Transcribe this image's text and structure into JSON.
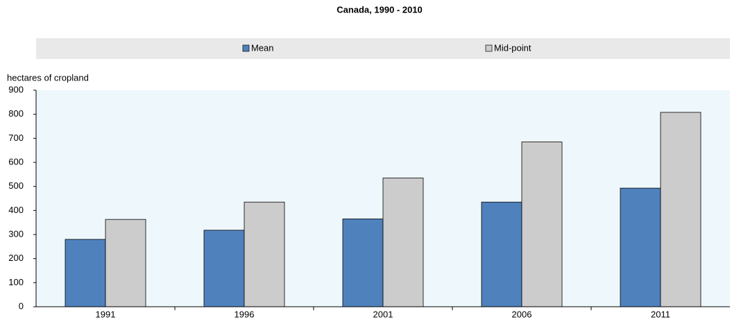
{
  "chart_data": {
    "type": "bar",
    "title": "Canada, 1990 - 2010",
    "y_label": "hectares of cropland",
    "categories": [
      "1991",
      "1996",
      "2001",
      "2006",
      "2011"
    ],
    "series": [
      {
        "name": "Mean",
        "color": "#4f81bd",
        "values": [
          280,
          318,
          365,
          435,
          493
        ]
      },
      {
        "name": "Mid-point",
        "color": "#cccccc",
        "values": [
          363,
          435,
          535,
          685,
          808
        ]
      }
    ],
    "ylim": [
      0,
      900
    ],
    "yticks": [
      0,
      100,
      200,
      300,
      400,
      500,
      600,
      700,
      800,
      900
    ]
  }
}
